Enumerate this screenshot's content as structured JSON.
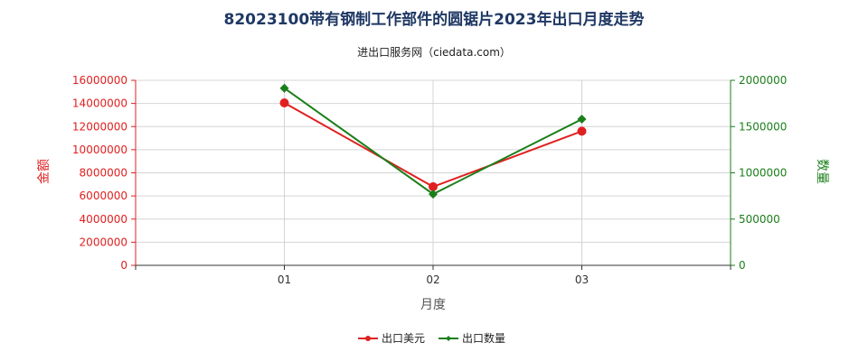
{
  "chart_data": {
    "type": "line",
    "title": "82023100带有钢制工作部件的圆锯片2023年出口月度走势",
    "subtitle": "进出口服务网（ciedata.com）",
    "x": [
      "01",
      "02",
      "03"
    ],
    "xlabel": "月度",
    "ylabel_left": "金额",
    "ylabel_right": "数量",
    "ylim_left": [
      0,
      16000000
    ],
    "ylim_right": [
      0,
      2000000
    ],
    "yticks_left": [
      "0",
      "2000000",
      "4000000",
      "6000000",
      "8000000",
      "10000000",
      "12000000",
      "14000000",
      "16000000"
    ],
    "yticks_right": [
      "0",
      "500000",
      "1000000",
      "1500000",
      "2000000"
    ],
    "grid": true,
    "legend_position": "bottom",
    "series": [
      {
        "name": "出口美元",
        "axis": "left",
        "color": "#e02020",
        "marker": "circle",
        "values": [
          14050000,
          6800000,
          11600000
        ]
      },
      {
        "name": "出口数量",
        "axis": "right",
        "color": "#1a7f1a",
        "marker": "diamond",
        "values": [
          1915000,
          770000,
          1580000
        ]
      }
    ]
  }
}
